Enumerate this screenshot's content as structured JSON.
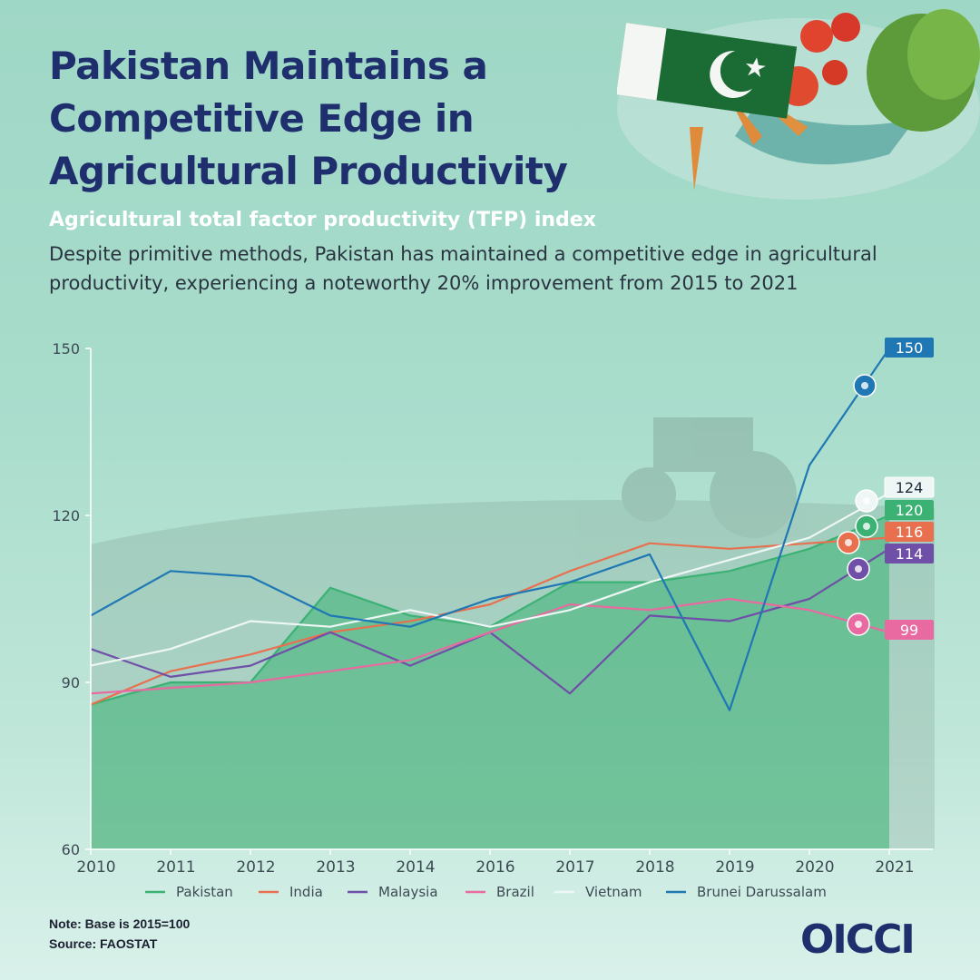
{
  "header": {
    "title": "Pakistan Maintains a Competitive Edge in Agricultural Productivity",
    "subtitle": "Agricultural total factor productivity (TFP) index",
    "description": "Despite primitive methods, Pakistan has maintained a competitive edge in agricultural productivity, experiencing a noteworthy 20% improvement from 2015 to 2021"
  },
  "footer": {
    "note": "Note: Base is 2015=100",
    "source": "Source: FAOSTAT",
    "logo": "OICCI"
  },
  "chart_data": {
    "type": "line",
    "categories": [
      "2010",
      "2011",
      "2012",
      "2013",
      "2014",
      "2016",
      "2017",
      "2018",
      "2019",
      "2020",
      "2021"
    ],
    "ylim": [
      60,
      150
    ],
    "yticks": [
      60,
      90,
      120,
      150
    ],
    "legend_position": "bottom",
    "series": [
      {
        "name": "Pakistan",
        "color": "#3bb273",
        "area": true,
        "values": [
          86,
          90,
          90,
          107,
          102,
          100,
          108,
          108,
          110,
          114,
          120
        ],
        "end_label": "120",
        "icon": "pakistan-flag-icon"
      },
      {
        "name": "India",
        "color": "#e8704f",
        "values": [
          86,
          92,
          95,
          99,
          101,
          104,
          110,
          115,
          114,
          115,
          116
        ],
        "end_label": "116",
        "icon": "india-flag-icon"
      },
      {
        "name": "Malaysia",
        "color": "#6f4fa8",
        "values": [
          96,
          91,
          93,
          99,
          93,
          99,
          88,
          102,
          101,
          105,
          114
        ],
        "end_label": "114",
        "icon": "malaysia-flag-icon"
      },
      {
        "name": "Brazil",
        "color": "#e86aa0",
        "values": [
          88,
          89,
          90,
          92,
          94,
          99,
          104,
          103,
          105,
          103,
          99
        ],
        "end_label": "99",
        "icon": "brazil-flag-icon"
      },
      {
        "name": "Vietnam",
        "color": "#eef7f5",
        "values": [
          93,
          96,
          101,
          100,
          103,
          100,
          103,
          108,
          112,
          116,
          124
        ],
        "end_label": "124",
        "icon": "vietnam-flag-icon"
      },
      {
        "name": "Brunei Darussalam",
        "color": "#1f78b4",
        "values": [
          102,
          110,
          109,
          102,
          100,
          105,
          108,
          113,
          85,
          129,
          150
        ],
        "end_label": "150",
        "icon": "brunei-flag-icon"
      }
    ]
  }
}
